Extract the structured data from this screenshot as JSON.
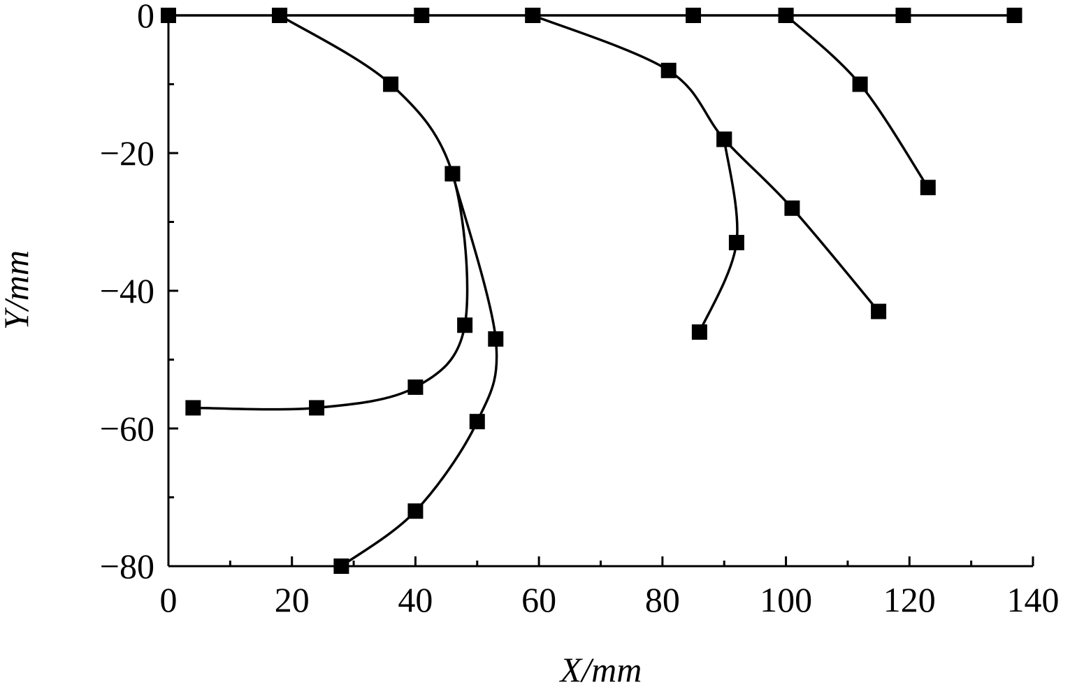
{
  "chart_data": {
    "type": "line",
    "x_label": "X/mm",
    "y_label": "Y/mm",
    "xlim": [
      0,
      140
    ],
    "xticks": [
      0,
      20,
      40,
      60,
      80,
      100,
      120,
      140
    ],
    "ylim": [
      -80,
      0
    ],
    "yticks": [
      {
        "value": -80,
        "label": "−80"
      },
      {
        "value": -60,
        "label": "−60"
      },
      {
        "value": -40,
        "label": "−40"
      },
      {
        "value": -20,
        "label": "−20"
      },
      0
    ],
    "smooth": true,
    "marker": "square",
    "series": [
      {
        "color": "#000000",
        "x": [
          0,
          18,
          41,
          59,
          85,
          100,
          119,
          137
        ],
        "values": [
          0,
          0,
          0,
          0,
          0,
          0,
          0,
          0
        ]
      },
      {
        "color": "#000000",
        "x": [
          18,
          36,
          46,
          48,
          40,
          24,
          4
        ],
        "values": [
          0,
          -10,
          -23,
          -45,
          -54,
          -57,
          -57
        ]
      },
      {
        "color": "#000000",
        "x": [
          46,
          53,
          50,
          40,
          28
        ],
        "values": [
          -23,
          -47,
          -59,
          -72,
          -80
        ]
      },
      {
        "color": "#000000",
        "x": [
          59,
          81,
          90,
          101,
          115
        ],
        "values": [
          0,
          -8,
          -18,
          -28,
          -43
        ]
      },
      {
        "color": "#000000",
        "x": [
          90,
          92,
          86
        ],
        "values": [
          -18,
          -33,
          -46
        ]
      },
      {
        "color": "#000000",
        "x": [
          100,
          112,
          123
        ],
        "values": [
          0,
          -10,
          -25
        ]
      }
    ]
  }
}
